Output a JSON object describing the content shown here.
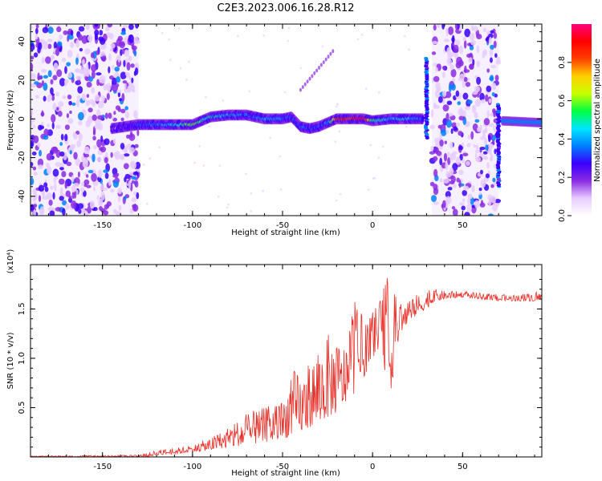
{
  "title": "C2E3.2023.006.16.28.R12",
  "chart_data": [
    {
      "type": "heatmap",
      "xlabel": "Height of straight line (km)",
      "ylabel": "Frequency (Hz)",
      "xlim": [
        -190,
        94
      ],
      "ylim": [
        -50,
        49
      ],
      "xticks": [
        -150,
        -100,
        -50,
        0,
        50
      ],
      "yticks": [
        -40,
        -20,
        0,
        20,
        40
      ],
      "colorbar": {
        "label": "Normalized spectral amplitude",
        "range": [
          0.0,
          1.0
        ],
        "ticks": [
          "0.0",
          "0.2",
          "0.4",
          "0.6",
          "0.8"
        ],
        "colors": [
          "#ffffff",
          "#e6ccff",
          "#8a2be2",
          "#3a00ff",
          "#0080ff",
          "#00e5ff",
          "#00ff40",
          "#c8ff00",
          "#ffd000",
          "#ff4000",
          "#ff0000",
          "#ff0080"
        ]
      },
      "noise_regions_km": [
        [
          -190,
          -130
        ],
        [
          33,
          70
        ]
      ],
      "ridge": {
        "x": [
          -145,
          -130,
          -120,
          -110,
          -100,
          -90,
          -80,
          -70,
          -60,
          -50,
          -45,
          -40,
          -35,
          -30,
          -25,
          -20,
          -10,
          -5,
          0,
          10,
          20,
          28
        ],
        "y": [
          -5,
          -3,
          -3,
          -3,
          -3,
          1,
          2,
          2,
          0,
          0,
          1,
          -4,
          -5,
          -4,
          -2,
          0,
          0,
          0,
          -1,
          0,
          0,
          0
        ],
        "peak_amplitude": [
          0.15,
          0.3,
          0.35,
          0.45,
          0.6,
          0.45,
          0.4,
          0.35,
          0.4,
          0.35,
          0.3,
          0.35,
          0.3,
          0.3,
          0.35,
          0.85,
          0.9,
          0.95,
          0.5,
          0.4,
          0.45,
          0.3
        ]
      },
      "right_trace": {
        "x": [
          72,
          94
        ],
        "y": [
          -1,
          -2
        ],
        "peak_amplitude": 0.35
      },
      "spurs": [
        {
          "x": 30,
          "y_range": [
            -10,
            32
          ]
        },
        {
          "x": 70,
          "y_range": [
            -35,
            8
          ]
        }
      ],
      "faint_line": {
        "x": [
          -40,
          -22
        ],
        "y": [
          15,
          35
        ]
      }
    },
    {
      "type": "line",
      "xlabel": "Height of straight line (km)",
      "ylabel": "SNR (10 * v/v)",
      "yunit": "(x10⁴)",
      "xlim": [
        -190,
        94
      ],
      "ylim": [
        0,
        1.95
      ],
      "xticks": [
        -150,
        -100,
        -50,
        0,
        50
      ],
      "yticks": [
        "0.5",
        "1.0",
        "1.5"
      ],
      "ytick_values": [
        0.5,
        1.0,
        1.5
      ],
      "color": "#e8322b",
      "envelope": {
        "x": [
          -190,
          -130,
          -125,
          -120,
          -110,
          -100,
          -90,
          -80,
          -70,
          -60,
          -50,
          -45,
          -40,
          -35,
          -30,
          -25,
          -20,
          -15,
          -10,
          -5,
          0,
          5,
          8,
          10,
          15,
          20,
          25,
          30,
          35,
          40,
          50,
          60,
          70,
          80,
          94
        ],
        "lo": [
          0.0,
          0.0,
          0.0,
          0.02,
          0.03,
          0.05,
          0.07,
          0.1,
          0.12,
          0.15,
          0.18,
          0.22,
          0.25,
          0.3,
          0.35,
          0.4,
          0.45,
          0.55,
          0.65,
          0.8,
          1.0,
          1.15,
          0.7,
          0.65,
          1.25,
          1.35,
          1.45,
          1.5,
          1.58,
          1.6,
          1.62,
          1.6,
          1.58,
          1.58,
          1.58
        ],
        "hi": [
          0.01,
          0.02,
          0.04,
          0.07,
          0.09,
          0.12,
          0.2,
          0.3,
          0.45,
          0.5,
          0.58,
          0.9,
          0.85,
          0.95,
          1.15,
          1.25,
          1.2,
          1.15,
          1.6,
          1.4,
          1.5,
          1.6,
          1.95,
          1.7,
          1.6,
          1.62,
          1.65,
          1.7,
          1.7,
          1.68,
          1.68,
          1.66,
          1.65,
          1.64,
          1.68
        ]
      }
    }
  ]
}
